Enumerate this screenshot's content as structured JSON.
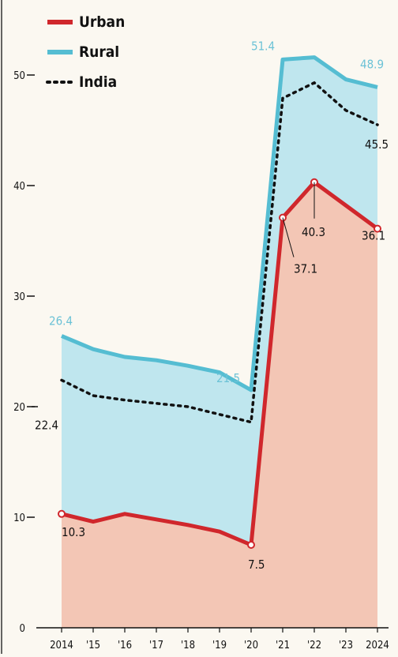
{
  "chart_data": {
    "type": "area",
    "categories": [
      "2014",
      "'15",
      "'16",
      "'17",
      "'18",
      "'19",
      "'20",
      "'21",
      "'22",
      "'23",
      "2024"
    ],
    "series": [
      {
        "name": "Urban",
        "values": [
          10.3,
          9.6,
          10.3,
          9.8,
          9.3,
          8.7,
          7.5,
          37.1,
          40.3,
          38.2,
          36.1
        ],
        "color": "#d0272c",
        "style": "solid"
      },
      {
        "name": "Rural",
        "values": [
          26.4,
          25.2,
          24.5,
          24.2,
          23.7,
          23.1,
          21.5,
          51.4,
          51.6,
          49.6,
          48.9
        ],
        "color": "#55bdd2",
        "style": "solid"
      },
      {
        "name": "India",
        "values": [
          22.4,
          21.0,
          20.6,
          20.3,
          20.0,
          19.3,
          18.6,
          47.9,
          49.3,
          46.8,
          45.5
        ],
        "color": "#111111",
        "style": "dotted"
      }
    ],
    "annotations": [
      {
        "text": "26.4",
        "series": "Rural",
        "index": 0
      },
      {
        "text": "21.5",
        "series": "Rural",
        "index": 6
      },
      {
        "text": "51.4",
        "series": "Rural",
        "index": 7
      },
      {
        "text": "48.9",
        "series": "Rural",
        "index": 10
      },
      {
        "text": "22.4",
        "series": "India",
        "index": 0
      },
      {
        "text": "45.5",
        "series": "India",
        "index": 10
      },
      {
        "text": "10.3",
        "series": "Urban",
        "index": 0
      },
      {
        "text": "7.5",
        "series": "Urban",
        "index": 6
      },
      {
        "text": "37.1",
        "series": "Urban",
        "index": 7
      },
      {
        "text": "40.3",
        "series": "Urban",
        "index": 8
      },
      {
        "text": "36.1",
        "series": "Urban",
        "index": 10
      }
    ],
    "y_ticks": [
      0,
      10,
      20,
      30,
      40,
      50
    ],
    "ylim": [
      0,
      55
    ],
    "legend": "top-left",
    "grid": false,
    "colors": {
      "urban_fill": "#f3c6b5",
      "rural_fill": "#bfe6ee",
      "background": "#fbf8f1"
    }
  }
}
